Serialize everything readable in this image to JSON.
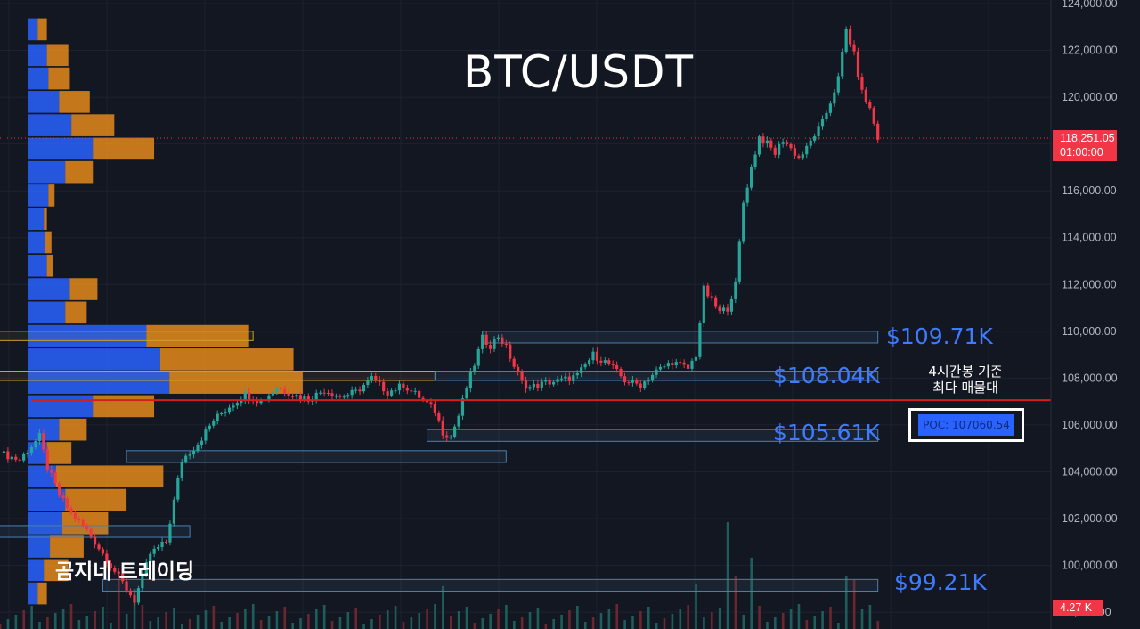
{
  "title": "BTC/USDT",
  "watermark": "곰지네 트레이딩",
  "note": {
    "line1": "4시간봉 기준",
    "line2": "최다 매물대"
  },
  "poc_label": "POC: 107060.54",
  "current_price": {
    "price": "118,251.05",
    "countdown": "01:00:00"
  },
  "volume_badge": "4.27 K",
  "colors": {
    "background": "#131722",
    "up": "#26a69a",
    "down": "#f23645",
    "profile_blue": "#2962ff",
    "profile_orange": "#f7931a",
    "accent_label": "#3d7bff",
    "poc_line": "#d11f1f",
    "grid": "#1e2230"
  },
  "chart_data": {
    "type": "candlestick",
    "symbol": "BTC/USDT",
    "timeframe": "4h",
    "ylim": [
      97700,
      124000
    ],
    "y_ticks": [
      "98,000.00",
      "100,000.00",
      "102,000.00",
      "104,000.00",
      "106,000.00",
      "108,000.00",
      "110,000.00",
      "112,000.00",
      "114,000.00",
      "116,000.00",
      "118,000.00",
      "120,000.00",
      "122,000.00",
      "124,000.00"
    ],
    "y_tick_values": [
      98000,
      100000,
      102000,
      104000,
      106000,
      108000,
      110000,
      112000,
      114000,
      116000,
      118000,
      120000,
      122000,
      124000
    ],
    "last_price": 118251.05,
    "poc": 107060.54,
    "levels": [
      {
        "label": "$109.71K",
        "value": 109710
      },
      {
        "label": "$108.04K",
        "value": 108040
      },
      {
        "label": "$105.61K",
        "value": 105610
      },
      {
        "label": "$99.21K",
        "value": 99210
      }
    ],
    "close_path": [
      [
        0,
        104800
      ],
      [
        5,
        104500
      ],
      [
        10,
        105500
      ],
      [
        12,
        104200
      ],
      [
        15,
        103000
      ],
      [
        18,
        102200
      ],
      [
        22,
        101500
      ],
      [
        26,
        100500
      ],
      [
        30,
        99500
      ],
      [
        34,
        98500
      ],
      [
        38,
        100500
      ],
      [
        42,
        101000
      ],
      [
        46,
        104500
      ],
      [
        50,
        105200
      ],
      [
        54,
        106200
      ],
      [
        58,
        106800
      ],
      [
        62,
        107300
      ],
      [
        66,
        107000
      ],
      [
        70,
        107600
      ],
      [
        74,
        107300
      ],
      [
        78,
        107100
      ],
      [
        82,
        107500
      ],
      [
        86,
        107200
      ],
      [
        90,
        107400
      ],
      [
        94,
        108000
      ],
      [
        98,
        107400
      ],
      [
        102,
        107700
      ],
      [
        106,
        107200
      ],
      [
        110,
        106600
      ],
      [
        112,
        105700
      ],
      [
        114,
        105500
      ],
      [
        116,
        106400
      ],
      [
        118,
        107600
      ],
      [
        120,
        108600
      ],
      [
        122,
        109700
      ],
      [
        124,
        109400
      ],
      [
        126,
        109800
      ],
      [
        128,
        109300
      ],
      [
        130,
        108500
      ],
      [
        132,
        107800
      ],
      [
        134,
        107600
      ],
      [
        138,
        107800
      ],
      [
        142,
        107900
      ],
      [
        146,
        108100
      ],
      [
        150,
        109000
      ],
      [
        154,
        108600
      ],
      [
        158,
        107900
      ],
      [
        162,
        107700
      ],
      [
        166,
        108300
      ],
      [
        170,
        108700
      ],
      [
        174,
        108400
      ],
      [
        176,
        109000
      ],
      [
        178,
        111800
      ],
      [
        180,
        111300
      ],
      [
        182,
        110800
      ],
      [
        184,
        111000
      ],
      [
        186,
        112000
      ],
      [
        188,
        115500
      ],
      [
        190,
        117000
      ],
      [
        192,
        118300
      ],
      [
        194,
        118000
      ],
      [
        196,
        117600
      ],
      [
        198,
        118200
      ],
      [
        200,
        117800
      ],
      [
        202,
        117400
      ],
      [
        204,
        117800
      ],
      [
        206,
        118400
      ],
      [
        208,
        118900
      ],
      [
        210,
        119800
      ],
      [
        212,
        120800
      ],
      [
        214,
        122900
      ],
      [
        216,
        121800
      ],
      [
        218,
        120200
      ],
      [
        220,
        119500
      ],
      [
        222,
        118250
      ]
    ],
    "volume_profile": [
      {
        "price": 122900,
        "buy": 6,
        "sell": 6
      },
      {
        "price": 121800,
        "buy": 12,
        "sell": 14
      },
      {
        "price": 120800,
        "buy": 13,
        "sell": 14
      },
      {
        "price": 119800,
        "buy": 20,
        "sell": 20
      },
      {
        "price": 118800,
        "buy": 28,
        "sell": 28
      },
      {
        "price": 117800,
        "buy": 42,
        "sell": 40
      },
      {
        "price": 116800,
        "buy": 24,
        "sell": 18
      },
      {
        "price": 115800,
        "buy": 13,
        "sell": 4
      },
      {
        "price": 114800,
        "buy": 10,
        "sell": 2
      },
      {
        "price": 113800,
        "buy": 11,
        "sell": 4
      },
      {
        "price": 112800,
        "buy": 12,
        "sell": 4
      },
      {
        "price": 111800,
        "buy": 27,
        "sell": 18
      },
      {
        "price": 110800,
        "buy": 24,
        "sell": 14
      },
      {
        "price": 109800,
        "buy": 77,
        "sell": 67
      },
      {
        "price": 108800,
        "buy": 86,
        "sell": 87
      },
      {
        "price": 107800,
        "buy": 92,
        "sell": 87
      },
      {
        "price": 106800,
        "buy": 42,
        "sell": 40
      },
      {
        "price": 105800,
        "buy": 20,
        "sell": 18
      },
      {
        "price": 104800,
        "buy": 12,
        "sell": 16
      },
      {
        "price": 103800,
        "buy": 18,
        "sell": 70
      },
      {
        "price": 102800,
        "buy": 24,
        "sell": 40
      },
      {
        "price": 101800,
        "buy": 22,
        "sell": 30
      },
      {
        "price": 100800,
        "buy": 14,
        "sell": 22
      },
      {
        "price": 99800,
        "buy": 10,
        "sell": 16
      },
      {
        "price": 98800,
        "buy": 6,
        "sell": 6
      }
    ],
    "zones": [
      {
        "low": 109600,
        "high": 110000,
        "from": -2,
        "to": 64,
        "color": "yellow"
      },
      {
        "low": 109500,
        "high": 110000,
        "from": 122,
        "to": 222,
        "color": "blue"
      },
      {
        "low": 107900,
        "high": 108300,
        "from": -2,
        "to": 110,
        "color": "yellow"
      },
      {
        "low": 107900,
        "high": 108300,
        "from": 110,
        "to": 222,
        "color": "blue"
      },
      {
        "low": 105300,
        "high": 105800,
        "from": 108,
        "to": 222,
        "color": "blue"
      },
      {
        "low": 104400,
        "high": 104900,
        "from": 32,
        "to": 128,
        "color": "blue"
      },
      {
        "low": 101200,
        "high": 101700,
        "from": -2,
        "to": 48,
        "color": "blue"
      },
      {
        "low": 98900,
        "high": 99400,
        "from": 26,
        "to": 222,
        "color": "blue"
      }
    ],
    "volume_spikes": [
      {
        "x": 184,
        "h": 120
      },
      {
        "x": 186,
        "h": 60
      },
      {
        "x": 190,
        "h": 80
      },
      {
        "x": 214,
        "h": 60
      },
      {
        "x": 216,
        "h": 55
      },
      {
        "x": 112,
        "h": 48
      },
      {
        "x": 30,
        "h": 65
      },
      {
        "x": 34,
        "h": 45
      },
      {
        "x": 176,
        "h": 50
      }
    ]
  }
}
